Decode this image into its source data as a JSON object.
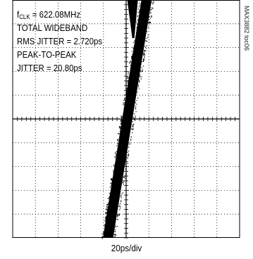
{
  "chart_data": {
    "type": "scatter",
    "title": "",
    "annotations": {
      "clock_label_prefix": "f",
      "clock_label_sub": "CLK",
      "clock_label_value": " = 622.08MHz",
      "line2": "TOTAL WIDEBAND",
      "line3": "RMS JITTER = 2.720ps",
      "line4": "PEAK-TO-PEAK",
      "line5": "JITTER = 20.80ps"
    },
    "xlabel": "20ps/div",
    "figure_id": "MAX3882 toc06",
    "grid": true,
    "grid_divisions": {
      "x": 10,
      "y": 10
    },
    "edge_trace": {
      "description_units": "divisions from center",
      "bottom_x_div": -0.8,
      "top_x_div": 0.9,
      "band_width_div": 0.45
    },
    "ringing_dip": {
      "x_div": 0.3,
      "depth_div": 1.6
    },
    "colors": {
      "trace": "#000000",
      "grid": "#000000",
      "background": "#ffffff"
    }
  }
}
